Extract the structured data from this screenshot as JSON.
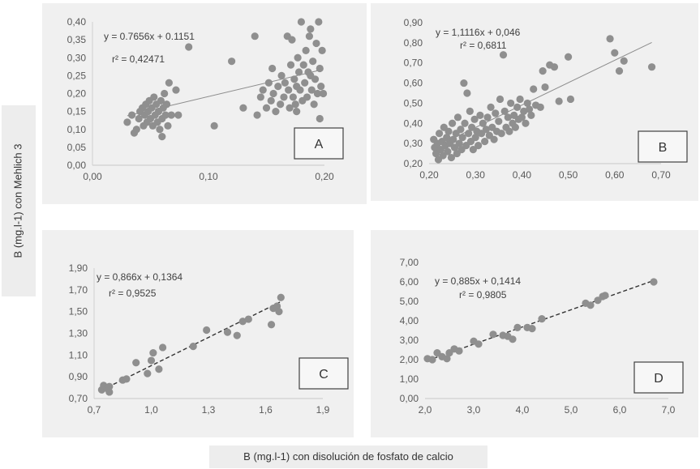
{
  "y_axis_label": "B (mg.l-1) con Mehlich 3",
  "x_axis_label": "B (mg.l-1) con disolución de fosfato de calcio",
  "chart_data": [
    {
      "type": "scatter",
      "panel_label": "A",
      "equation": "y = 0.7656x + 0.1151",
      "r2": "r² = 0,42471",
      "trendline": {
        "slope": 0.7656,
        "intercept": 0.1151,
        "style": "solid"
      },
      "xlim": [
        0,
        0.2
      ],
      "ylim": [
        0,
        0.4
      ],
      "x_ticks": [
        "0,00",
        "0,10",
        "0,20"
      ],
      "y_ticks": [
        "0,00",
        "0,05",
        "0,10",
        "0,15",
        "0,20",
        "0,25",
        "0,30",
        "0,35",
        "0,40"
      ],
      "points": [
        [
          0.03,
          0.12
        ],
        [
          0.034,
          0.14
        ],
        [
          0.036,
          0.09
        ],
        [
          0.038,
          0.1
        ],
        [
          0.04,
          0.13
        ],
        [
          0.041,
          0.15
        ],
        [
          0.043,
          0.16
        ],
        [
          0.044,
          0.11
        ],
        [
          0.045,
          0.14
        ],
        [
          0.046,
          0.17
        ],
        [
          0.047,
          0.12
        ],
        [
          0.048,
          0.15
        ],
        [
          0.049,
          0.18
        ],
        [
          0.05,
          0.13
        ],
        [
          0.051,
          0.16
        ],
        [
          0.052,
          0.11
        ],
        [
          0.053,
          0.19
        ],
        [
          0.054,
          0.14
        ],
        [
          0.055,
          0.17
        ],
        [
          0.056,
          0.12
        ],
        [
          0.057,
          0.15
        ],
        [
          0.058,
          0.1
        ],
        [
          0.059,
          0.18
        ],
        [
          0.06,
          0.13
        ],
        [
          0.061,
          0.16
        ],
        [
          0.062,
          0.2
        ],
        [
          0.063,
          0.14
        ],
        [
          0.064,
          0.17
        ],
        [
          0.06,
          0.08
        ],
        [
          0.065,
          0.11
        ],
        [
          0.066,
          0.23
        ],
        [
          0.068,
          0.14
        ],
        [
          0.072,
          0.21
        ],
        [
          0.074,
          0.14
        ],
        [
          0.083,
          0.33
        ],
        [
          0.105,
          0.11
        ],
        [
          0.12,
          0.29
        ],
        [
          0.13,
          0.16
        ],
        [
          0.14,
          0.36
        ],
        [
          0.142,
          0.14
        ],
        [
          0.145,
          0.19
        ],
        [
          0.147,
          0.21
        ],
        [
          0.15,
          0.16
        ],
        [
          0.152,
          0.23
        ],
        [
          0.154,
          0.18
        ],
        [
          0.155,
          0.27
        ],
        [
          0.156,
          0.2
        ],
        [
          0.158,
          0.15
        ],
        [
          0.16,
          0.22
        ],
        [
          0.162,
          0.17
        ],
        [
          0.163,
          0.25
        ],
        [
          0.165,
          0.19
        ],
        [
          0.166,
          0.23
        ],
        [
          0.168,
          0.36
        ],
        [
          0.169,
          0.21
        ],
        [
          0.17,
          0.16
        ],
        [
          0.171,
          0.28
        ],
        [
          0.172,
          0.35
        ],
        [
          0.173,
          0.19
        ],
        [
          0.174,
          0.24
        ],
        [
          0.175,
          0.17
        ],
        [
          0.176,
          0.22
        ],
        [
          0.177,
          0.3
        ],
        [
          0.178,
          0.26
        ],
        [
          0.179,
          0.21
        ],
        [
          0.18,
          0.4
        ],
        [
          0.181,
          0.18
        ],
        [
          0.182,
          0.28
        ],
        [
          0.183,
          0.23
        ],
        [
          0.184,
          0.32
        ],
        [
          0.185,
          0.19
        ],
        [
          0.186,
          0.26
        ],
        [
          0.187,
          0.36
        ],
        [
          0.188,
          0.38
        ],
        [
          0.189,
          0.21
        ],
        [
          0.19,
          0.29
        ],
        [
          0.191,
          0.17
        ],
        [
          0.192,
          0.24
        ],
        [
          0.193,
          0.34
        ],
        [
          0.194,
          0.2
        ],
        [
          0.195,
          0.4
        ],
        [
          0.196,
          0.27
        ],
        [
          0.197,
          0.22
        ],
        [
          0.198,
          0.32
        ],
        [
          0.199,
          0.2
        ],
        [
          0.196,
          0.13
        ],
        [
          0.188,
          0.25
        ],
        [
          0.176,
          0.15
        ]
      ]
    },
    {
      "type": "scatter",
      "panel_label": "B",
      "equation": "y = 1,1116x + 0,046",
      "r2": "r² = 0,6811",
      "trendline": {
        "slope": 1.1116,
        "intercept": 0.046,
        "style": "solid"
      },
      "xlim": [
        0.2,
        0.7
      ],
      "ylim": [
        0.2,
        0.9
      ],
      "x_ticks": [
        "0,20",
        "0,30",
        "0,40",
        "0,50",
        "0,60",
        "0,70"
      ],
      "y_ticks": [
        "0,20",
        "0,30",
        "0,40",
        "0,50",
        "0,60",
        "0,70",
        "0,80",
        "0,90"
      ],
      "points": [
        [
          0.21,
          0.32
        ],
        [
          0.212,
          0.28
        ],
        [
          0.215,
          0.25
        ],
        [
          0.218,
          0.3
        ],
        [
          0.22,
          0.22
        ],
        [
          0.222,
          0.35
        ],
        [
          0.225,
          0.27
        ],
        [
          0.228,
          0.31
        ],
        [
          0.23,
          0.24
        ],
        [
          0.232,
          0.38
        ],
        [
          0.235,
          0.29
        ],
        [
          0.238,
          0.33
        ],
        [
          0.24,
          0.26
        ],
        [
          0.242,
          0.36
        ],
        [
          0.245,
          0.3
        ],
        [
          0.248,
          0.23
        ],
        [
          0.25,
          0.4
        ],
        [
          0.252,
          0.32
        ],
        [
          0.255,
          0.28
        ],
        [
          0.258,
          0.35
        ],
        [
          0.26,
          0.25
        ],
        [
          0.262,
          0.43
        ],
        [
          0.265,
          0.3
        ],
        [
          0.268,
          0.37
        ],
        [
          0.27,
          0.27
        ],
        [
          0.272,
          0.33
        ],
        [
          0.275,
          0.6
        ],
        [
          0.277,
          0.4
        ],
        [
          0.28,
          0.29
        ],
        [
          0.282,
          0.55
        ],
        [
          0.285,
          0.35
        ],
        [
          0.288,
          0.46
        ],
        [
          0.29,
          0.31
        ],
        [
          0.292,
          0.38
        ],
        [
          0.295,
          0.27
        ],
        [
          0.298,
          0.42
        ],
        [
          0.3,
          0.33
        ],
        [
          0.303,
          0.36
        ],
        [
          0.306,
          0.29
        ],
        [
          0.31,
          0.44
        ],
        [
          0.313,
          0.35
        ],
        [
          0.316,
          0.4
        ],
        [
          0.32,
          0.31
        ],
        [
          0.323,
          0.37
        ],
        [
          0.326,
          0.43
        ],
        [
          0.33,
          0.34
        ],
        [
          0.333,
          0.48
        ],
        [
          0.336,
          0.38
        ],
        [
          0.34,
          0.32
        ],
        [
          0.343,
          0.45
        ],
        [
          0.346,
          0.36
        ],
        [
          0.35,
          0.41
        ],
        [
          0.353,
          0.52
        ],
        [
          0.356,
          0.35
        ],
        [
          0.36,
          0.74
        ],
        [
          0.363,
          0.46
        ],
        [
          0.366,
          0.38
        ],
        [
          0.37,
          0.43
        ],
        [
          0.373,
          0.36
        ],
        [
          0.376,
          0.5
        ],
        [
          0.38,
          0.4
        ],
        [
          0.383,
          0.44
        ],
        [
          0.386,
          0.38
        ],
        [
          0.39,
          0.48
        ],
        [
          0.393,
          0.42
        ],
        [
          0.396,
          0.52
        ],
        [
          0.4,
          0.43
        ],
        [
          0.404,
          0.46
        ],
        [
          0.408,
          0.4
        ],
        [
          0.412,
          0.5
        ],
        [
          0.416,
          0.47
        ],
        [
          0.42,
          0.44
        ],
        [
          0.425,
          0.57
        ],
        [
          0.43,
          0.49
        ],
        [
          0.44,
          0.48
        ],
        [
          0.445,
          0.66
        ],
        [
          0.45,
          0.58
        ],
        [
          0.46,
          0.69
        ],
        [
          0.47,
          0.68
        ],
        [
          0.48,
          0.51
        ],
        [
          0.5,
          0.73
        ],
        [
          0.505,
          0.52
        ],
        [
          0.59,
          0.82
        ],
        [
          0.6,
          0.75
        ],
        [
          0.61,
          0.66
        ],
        [
          0.62,
          0.71
        ],
        [
          0.68,
          0.68
        ]
      ]
    },
    {
      "type": "scatter",
      "panel_label": "C",
      "equation": "y = 0,866x + 0,1364",
      "r2": "r² = 0,9525",
      "trendline": {
        "slope": 0.866,
        "intercept": 0.1364,
        "style": "dashed"
      },
      "xlim": [
        0.7,
        1.9
      ],
      "ylim": [
        0.7,
        1.9
      ],
      "x_ticks": [
        "0,7",
        "1,0",
        "1,3",
        "1,6",
        "1,9"
      ],
      "y_ticks": [
        "0,70",
        "0,90",
        "1,10",
        "1,30",
        "1,50",
        "1,70",
        "1,90"
      ],
      "points": [
        [
          0.74,
          0.78
        ],
        [
          0.75,
          0.82
        ],
        [
          0.77,
          0.79
        ],
        [
          0.78,
          0.76
        ],
        [
          0.78,
          0.81
        ],
        [
          0.85,
          0.87
        ],
        [
          0.87,
          0.88
        ],
        [
          0.92,
          1.03
        ],
        [
          0.98,
          0.93
        ],
        [
          1.0,
          1.05
        ],
        [
          1.01,
          1.12
        ],
        [
          1.04,
          0.97
        ],
        [
          1.06,
          1.17
        ],
        [
          1.22,
          1.18
        ],
        [
          1.29,
          1.33
        ],
        [
          1.4,
          1.31
        ],
        [
          1.45,
          1.28
        ],
        [
          1.48,
          1.41
        ],
        [
          1.51,
          1.43
        ],
        [
          1.63,
          1.38
        ],
        [
          1.64,
          1.53
        ],
        [
          1.66,
          1.55
        ],
        [
          1.67,
          1.5
        ],
        [
          1.68,
          1.63
        ]
      ]
    },
    {
      "type": "scatter",
      "panel_label": "D",
      "equation": "y = 0,885x + 0,1414",
      "r2": "r² = 0,9805",
      "trendline": {
        "slope": 0.885,
        "intercept": 0.1414,
        "style": "dashed"
      },
      "xlim": [
        2.0,
        7.0
      ],
      "ylim": [
        0.0,
        7.0
      ],
      "x_ticks": [
        "2,0",
        "3,0",
        "4,0",
        "5,0",
        "6,0",
        "7,0"
      ],
      "y_ticks": [
        "0,00",
        "1,00",
        "2,00",
        "3,00",
        "4,00",
        "5,00",
        "6,00",
        "7,00"
      ],
      "points": [
        [
          2.05,
          2.05
        ],
        [
          2.15,
          2.0
        ],
        [
          2.25,
          2.35
        ],
        [
          2.35,
          2.15
        ],
        [
          2.45,
          2.05
        ],
        [
          2.5,
          2.35
        ],
        [
          2.6,
          2.55
        ],
        [
          2.7,
          2.45
        ],
        [
          3.0,
          2.95
        ],
        [
          3.1,
          2.8
        ],
        [
          3.4,
          3.3
        ],
        [
          3.6,
          3.25
        ],
        [
          3.7,
          3.2
        ],
        [
          3.8,
          3.05
        ],
        [
          3.9,
          3.65
        ],
        [
          4.1,
          3.65
        ],
        [
          4.2,
          3.6
        ],
        [
          4.4,
          4.1
        ],
        [
          5.3,
          4.9
        ],
        [
          5.4,
          4.8
        ],
        [
          5.55,
          5.05
        ],
        [
          5.65,
          5.25
        ],
        [
          5.7,
          5.3
        ],
        [
          6.7,
          6.0
        ]
      ]
    }
  ]
}
